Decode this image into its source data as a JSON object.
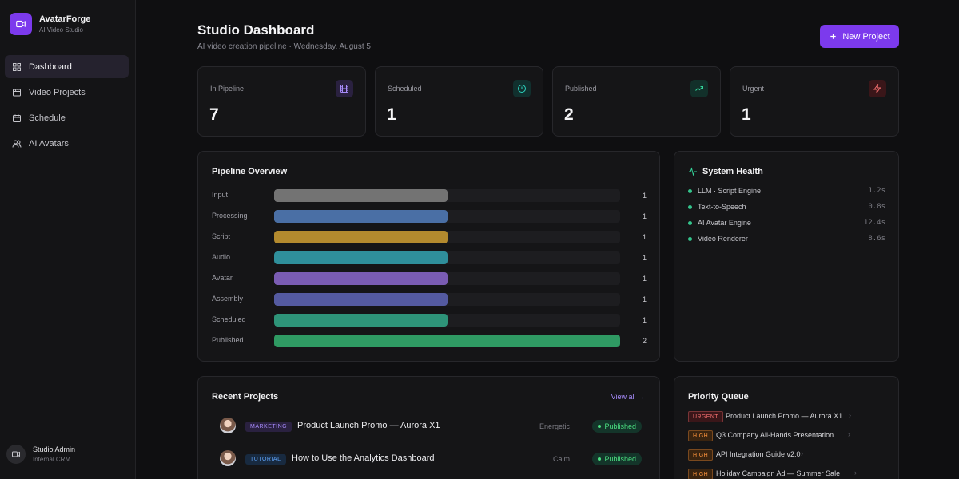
{
  "brand": {
    "name": "AvatarForge",
    "subtitle": "AI Video Studio"
  },
  "sidebar": {
    "items": [
      {
        "label": "Dashboard",
        "icon": "grid-icon",
        "active": true
      },
      {
        "label": "Video Projects",
        "icon": "film-icon"
      },
      {
        "label": "Schedule",
        "icon": "calendar-icon"
      },
      {
        "label": "AI Avatars",
        "icon": "users-icon"
      }
    ]
  },
  "user": {
    "name": "Studio Admin",
    "role": "Internal CRM"
  },
  "header": {
    "title": "Studio Dashboard",
    "subtitle": "AI video creation pipeline · Wednesday, August 5",
    "new_project_label": "New Project"
  },
  "stats": [
    {
      "label": "In Pipeline",
      "value": "7",
      "icon": "film-icon",
      "color": "#a78bfa"
    },
    {
      "label": "Scheduled",
      "value": "1",
      "icon": "clock-icon",
      "color": "#2dd4bf"
    },
    {
      "label": "Published",
      "value": "2",
      "icon": "trending-up-icon",
      "color": "#34d399"
    },
    {
      "label": "Urgent",
      "value": "1",
      "icon": "zap-icon",
      "color": "#f87171"
    }
  ],
  "pipeline": {
    "title": "Pipeline Overview",
    "max": 2,
    "stages": [
      {
        "label": "Input",
        "count": 1,
        "color": "#737373"
      },
      {
        "label": "Processing",
        "count": 1,
        "color": "#4a6fa5"
      },
      {
        "label": "Script",
        "count": 1,
        "color": "#b38a2e"
      },
      {
        "label": "Audio",
        "count": 1,
        "color": "#2f8f9b"
      },
      {
        "label": "Avatar",
        "count": 1,
        "color": "#7a5cb3"
      },
      {
        "label": "Assembly",
        "count": 1,
        "color": "#545aa0"
      },
      {
        "label": "Scheduled",
        "count": 1,
        "color": "#2e9479"
      },
      {
        "label": "Published",
        "count": 2,
        "color": "#2f9a63"
      }
    ]
  },
  "health": {
    "title": "System Health",
    "services": [
      {
        "name": "LLM · Script Engine",
        "latency": "1.2s"
      },
      {
        "name": "Text-to-Speech",
        "latency": "0.8s"
      },
      {
        "name": "AI Avatar Engine",
        "latency": "12.4s"
      },
      {
        "name": "Video Renderer",
        "latency": "8.6s"
      }
    ]
  },
  "recent": {
    "title": "Recent Projects",
    "view_all": "View all →",
    "projects": [
      {
        "tag": "MARKETING",
        "title": "Product Launch Promo — Aurora X1",
        "tone": "Energetic",
        "status": "Published",
        "tag_bg": "#2a2140",
        "tag_color": "#a78bfa"
      },
      {
        "tag": "TUTORIAL",
        "title": "How to Use the Analytics Dashboard",
        "tone": "Calm",
        "status": "Published",
        "tag_bg": "#182a40",
        "tag_color": "#60a5fa"
      }
    ]
  },
  "priority": {
    "title": "Priority Queue",
    "items": [
      {
        "badge": "URGENT",
        "title": "Product Launch Promo — Aurora X1",
        "bg": "#3a1619",
        "color": "#f87171"
      },
      {
        "badge": "HIGH",
        "title": "Q3 Company All-Hands Presentation",
        "bg": "#3a2410",
        "color": "#fb923c"
      },
      {
        "badge": "HIGH",
        "title": "API Integration Guide v2.0",
        "bg": "#3a2410",
        "color": "#fb923c"
      },
      {
        "badge": "HIGH",
        "title": "Holiday Campaign Ad — Summer Sale",
        "bg": "#3a2410",
        "color": "#fb923c"
      }
    ]
  }
}
